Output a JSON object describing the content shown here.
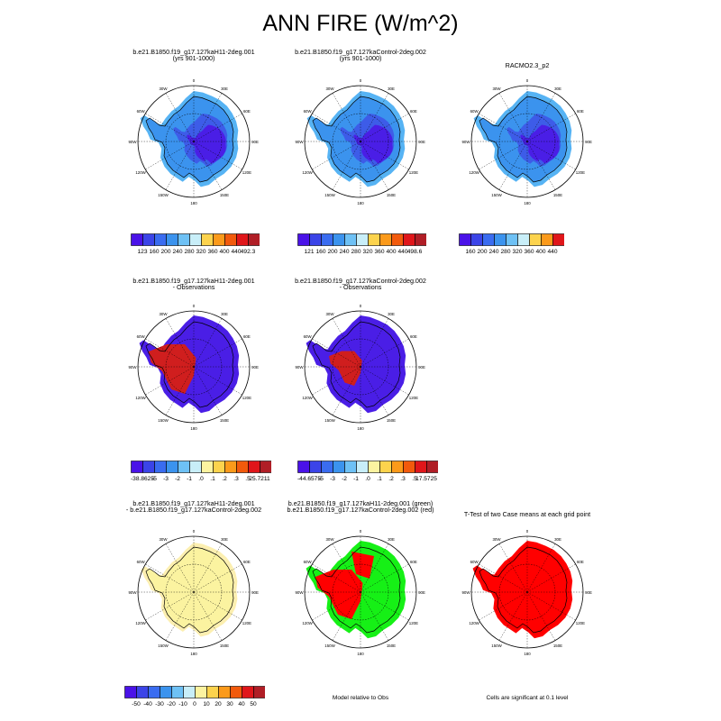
{
  "page_title": "ANN FIRE (W/m^2)",
  "colors": {
    "ice_blue_dark": "#4a1ee6",
    "ice_blue_mid": "#3d5ce8",
    "ice_blue_light": "#3b93ee",
    "ice_blue_pale": "#56b3f4",
    "diff_red": "#d01e1e",
    "diff_blue": "#4a1ee6",
    "diff_yellow": "#fbf3a0",
    "green": "#16f016",
    "red": "#ff0000"
  },
  "chart_data": [
    {
      "type": "heatmap",
      "title": "b.e21.B1850.f19_g17.127kaH11-2deg.001",
      "subtitle": "(yrs 901-1000)",
      "colorbar": [
        "123",
        "160",
        "200",
        "240",
        "280",
        "320",
        "360",
        "400",
        "440",
        "492.3"
      ],
      "colorbar_colors": [
        "#4a12e8",
        "#3b44e8",
        "#3a6cf0",
        "#3b93ee",
        "#6ec1f5",
        "#c8eef8",
        "#fcd34d",
        "#fb9a1a",
        "#f25a0c",
        "#e0161a",
        "#b01e26"
      ],
      "longitude_labels": [
        "0",
        "30E",
        "60E",
        "90E",
        "120E",
        "150E",
        "180",
        "150W",
        "120W",
        "90W",
        "60W",
        "30W"
      ]
    },
    {
      "type": "heatmap",
      "title": "b.e21.B1850.f19_g17.127kaControl-2deg.002",
      "subtitle": "(yrs 901-1000)",
      "colorbar": [
        "121",
        "160",
        "200",
        "240",
        "280",
        "320",
        "360",
        "400",
        "440",
        "498.6"
      ],
      "colorbar_colors": [
        "#4a12e8",
        "#3b44e8",
        "#3a6cf0",
        "#3b93ee",
        "#6ec1f5",
        "#c8eef8",
        "#fcd34d",
        "#fb9a1a",
        "#f25a0c",
        "#e0161a",
        "#b01e26"
      ],
      "longitude_labels": [
        "0",
        "30E",
        "60E",
        "90E",
        "120E",
        "150E",
        "180",
        "150W",
        "120W",
        "90W",
        "60W",
        "30W"
      ]
    },
    {
      "type": "heatmap",
      "title": "RACMO2.3_p2",
      "subtitle": "",
      "colorbar": [
        "160",
        "200",
        "240",
        "280",
        "320",
        "360",
        "400",
        "440"
      ],
      "colorbar_colors": [
        "#4a12e8",
        "#3b44e8",
        "#3a6cf0",
        "#3b93ee",
        "#6ec1f5",
        "#c8eef8",
        "#fcd34d",
        "#fb9a1a",
        "#e0161a"
      ],
      "longitude_labels": [
        "0",
        "30E",
        "60E",
        "90E",
        "120E",
        "150E",
        "180",
        "150W",
        "120W",
        "90W",
        "60W",
        "30W"
      ]
    },
    {
      "type": "heatmap",
      "title": "b.e21.B1850.f19_g17.127kaH11-2deg.001",
      "subtitle": "- Observations",
      "colorbar": [
        "-38.8625",
        "-5",
        "-3",
        "-2",
        "-1",
        ".0",
        ".1",
        ".2",
        ".3",
        ".5",
        "25.7211"
      ],
      "colorbar_colors": [
        "#4a12e8",
        "#3b44e8",
        "#3a6cf0",
        "#3b93ee",
        "#6ec1f5",
        "#c8eef8",
        "#fcf3a0",
        "#fcd34d",
        "#fb9a1a",
        "#f25a0c",
        "#e0161a",
        "#b01e26"
      ],
      "longitude_labels": [
        "0",
        "30E",
        "60E",
        "90E",
        "120E",
        "150E",
        "180",
        "150W",
        "120W",
        "90W",
        "60W",
        "30W"
      ]
    },
    {
      "type": "heatmap",
      "title": "b.e21.B1850.f19_g17.127kaControl-2deg.002",
      "subtitle": "- Observations",
      "colorbar": [
        "-44.6575",
        "-5",
        "-3",
        "-2",
        "-1",
        ".0",
        ".1",
        ".2",
        ".3",
        ".5",
        "17.5725"
      ],
      "colorbar_colors": [
        "#4a12e8",
        "#3b44e8",
        "#3a6cf0",
        "#3b93ee",
        "#6ec1f5",
        "#c8eef8",
        "#fcf3a0",
        "#fcd34d",
        "#fb9a1a",
        "#f25a0c",
        "#e0161a",
        "#b01e26"
      ],
      "longitude_labels": [
        "0",
        "30E",
        "60E",
        "90E",
        "120E",
        "150E",
        "180",
        "150W",
        "120W",
        "90W",
        "60W",
        "30W"
      ]
    },
    {
      "type": "heatmap",
      "title": "b.e21.B1850.f19_g17.127kaH11-2deg.001",
      "subtitle": "- b.e21.B1850.f19_g17.127kaControl-2deg.002",
      "colorbar": [
        "-50",
        "-40",
        "-30",
        "-20",
        "-10",
        "0",
        "10",
        "20",
        "30",
        "40",
        "50"
      ],
      "colorbar_colors": [
        "#4a12e8",
        "#3b44e8",
        "#3a6cf0",
        "#3b93ee",
        "#6ec1f5",
        "#c8eef8",
        "#fcf3a0",
        "#fcd34d",
        "#fb9a1a",
        "#f25a0c",
        "#e0161a",
        "#b01e26"
      ],
      "longitude_labels": [
        "0",
        "30E",
        "60E",
        "90E",
        "120E",
        "150E",
        "180",
        "150W",
        "120W",
        "90W",
        "60W",
        "30W"
      ]
    },
    {
      "type": "heatmap",
      "title": "b.e21.B1850.f19_g17.127kaH11-2deg.001 (green)",
      "subtitle": "b.e21.B1850.f19_g17.127kaControl-2deg.002 (red)",
      "note": "Model relative to Obs",
      "longitude_labels": [
        "0",
        "30E",
        "60E",
        "90E",
        "120E",
        "150E",
        "180",
        "150W",
        "120W",
        "90W",
        "60W",
        "30W"
      ]
    },
    {
      "type": "heatmap",
      "title": "T-Test of two Case means at each grid point",
      "subtitle": "",
      "note": "Cells are significant at 0.1 level",
      "longitude_labels": [
        "0",
        "30E",
        "60E",
        "90E",
        "120E",
        "150E",
        "180",
        "150W",
        "120W",
        "90W",
        "60W",
        "30W"
      ]
    }
  ]
}
